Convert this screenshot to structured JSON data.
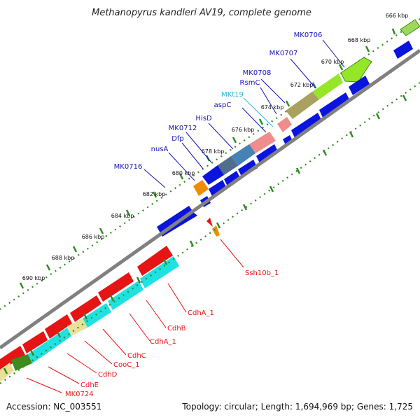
{
  "title": "Methanopyrus kandleri AV19, complete genome",
  "accession": "Accession: NC_003551",
  "topology": "Topology: circular; Length: 1,694,969 bp; Genes: 1,725",
  "colors": {
    "backbone": "#808080",
    "tick": "#2e8b1e",
    "label_blue": "#1414b4",
    "label_cyan": "#28b4dc",
    "label_red": "#e61414",
    "cds_blue": "#0a14dc",
    "cds_red": "#e61414",
    "cds_cyan": "#1ee1e1",
    "lime": "#96e628",
    "olive": "#aaa060",
    "pink": "#f08c8c",
    "orange": "#f08c00",
    "khaki": "#ebe09a",
    "steel": "#506e8c",
    "green_dark": "#3c8c1e"
  },
  "kbp_ticks": [
    "666 kbp",
    "668 kbp",
    "670 kbp",
    "672 kbp",
    "674 kbp",
    "676 kbp",
    "678 kbp",
    "680 kbp",
    "682 kbp",
    "684 kbp",
    "686 kbp",
    "688 kbp",
    "690 kbp"
  ],
  "gene_labels": {
    "mk0706": "MK0706",
    "mk0707": "MK0707",
    "mk0708": "MK0708",
    "rsmc": "RsmC",
    "mkt19": "MKt19",
    "aspc": "aspC",
    "hisd": "HisD",
    "mk0712": "MK0712",
    "dfp": "Dfp",
    "nusa": "nusA",
    "mk0716": "MK0716",
    "ssh10b": "Ssh10b_1",
    "cdha1_top": "CdhA_1",
    "cdhb": "CdhB",
    "cdha1_bottom": "CdhA_1",
    "cdhc": "CdhC",
    "cooc": "CooC_1",
    "cdhd": "CdhD",
    "cdhe": "CdhE",
    "mk0724": "MK0724"
  }
}
